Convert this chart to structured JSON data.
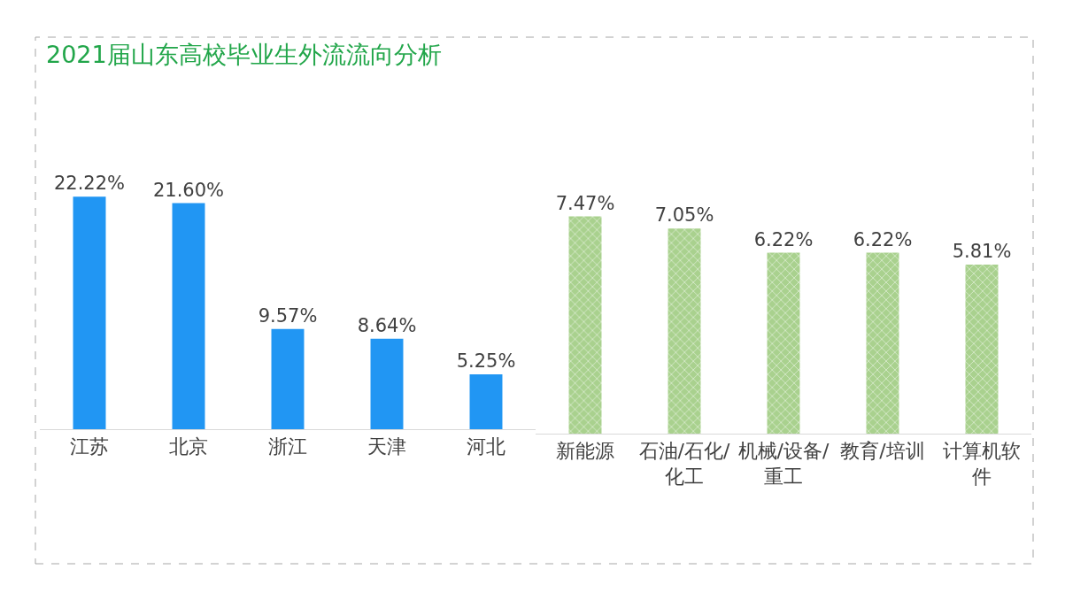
{
  "chart_data": [
    {
      "type": "bar",
      "title": "2021届山东高校毕业生外流流向分析",
      "categories": [
        "江苏",
        "北京",
        "浙江",
        "天津",
        "河北"
      ],
      "values": [
        22.22,
        21.6,
        9.57,
        8.64,
        5.25
      ],
      "value_labels": [
        "22.22%",
        "21.60%",
        "9.57%",
        "8.64%",
        "5.25%"
      ],
      "color": "#2196f3",
      "tick_labels": "x"
    },
    {
      "type": "bar",
      "categories": [
        "新能源",
        "石油/石化/化工",
        "机械/设备/重工",
        "教育/培训",
        "计算机软件"
      ],
      "values": [
        7.47,
        7.05,
        6.22,
        6.22,
        5.81
      ],
      "value_labels": [
        "7.47%",
        "7.05%",
        "6.22%",
        "6.22%",
        "5.81%"
      ],
      "color": "#a9d18e",
      "tick_labels": "x"
    }
  ]
}
